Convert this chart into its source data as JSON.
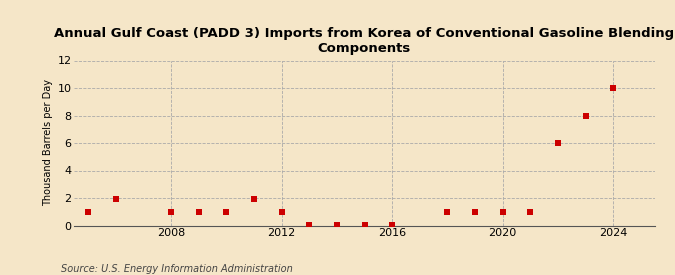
{
  "title": "Annual Gulf Coast (PADD 3) Imports from Korea of Conventional Gasoline Blending\nComponents",
  "ylabel": "Thousand Barrels per Day",
  "source": "Source: U.S. Energy Information Administration",
  "background_color": "#f5e6c8",
  "plot_background_color": "#f5e6c8",
  "marker_color": "#cc0000",
  "marker": "s",
  "marker_size": 4,
  "xlim": [
    2004.5,
    2025.5
  ],
  "ylim": [
    0,
    12
  ],
  "yticks": [
    0,
    2,
    4,
    6,
    8,
    10,
    12
  ],
  "xticks": [
    2008,
    2012,
    2016,
    2020,
    2024
  ],
  "grid_color": "#aaaaaa",
  "x_data": [
    2005,
    2006,
    2008,
    2009,
    2010,
    2011,
    2012,
    2013,
    2014,
    2015,
    2016,
    2018,
    2019,
    2020,
    2021,
    2022,
    2023,
    2024
  ],
  "y_data": [
    1,
    1.9,
    1,
    1,
    1,
    1.9,
    1,
    0.07,
    0.07,
    0.07,
    0.07,
    1,
    1,
    1,
    1,
    6,
    8,
    10
  ]
}
